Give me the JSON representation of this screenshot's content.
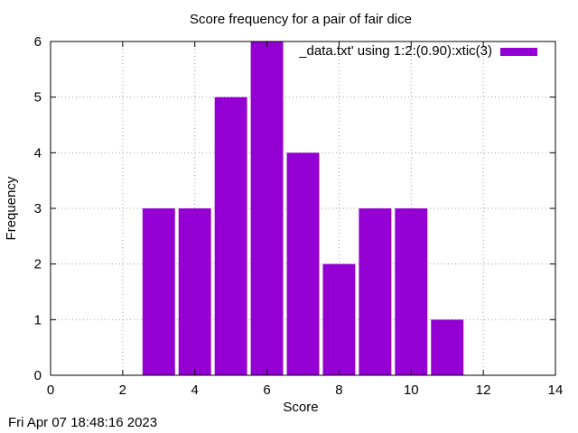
{
  "chart_data": {
    "type": "bar",
    "title": "Score frequency for a pair of fair dice",
    "xlabel": "Score",
    "ylabel": "Frequency",
    "xlim": [
      0,
      14
    ],
    "ylim": [
      0,
      6
    ],
    "x_ticks": [
      0,
      2,
      4,
      6,
      8,
      10,
      12,
      14
    ],
    "y_ticks": [
      0,
      1,
      2,
      3,
      4,
      5,
      6
    ],
    "grid": true,
    "legend_position": "top-right",
    "series": [
      {
        "name": "_data.txt' using 1:2:(0.90):xtic(3)",
        "color": "#9400d3",
        "bar_width": 0.9,
        "x": [
          3,
          4,
          5,
          6,
          7,
          8,
          9,
          10,
          11
        ],
        "values": [
          3,
          3,
          5,
          6,
          4,
          2,
          3,
          3,
          1
        ]
      }
    ]
  },
  "footer": {
    "timestamp": "Fri Apr 07 18:48:16 2023"
  }
}
